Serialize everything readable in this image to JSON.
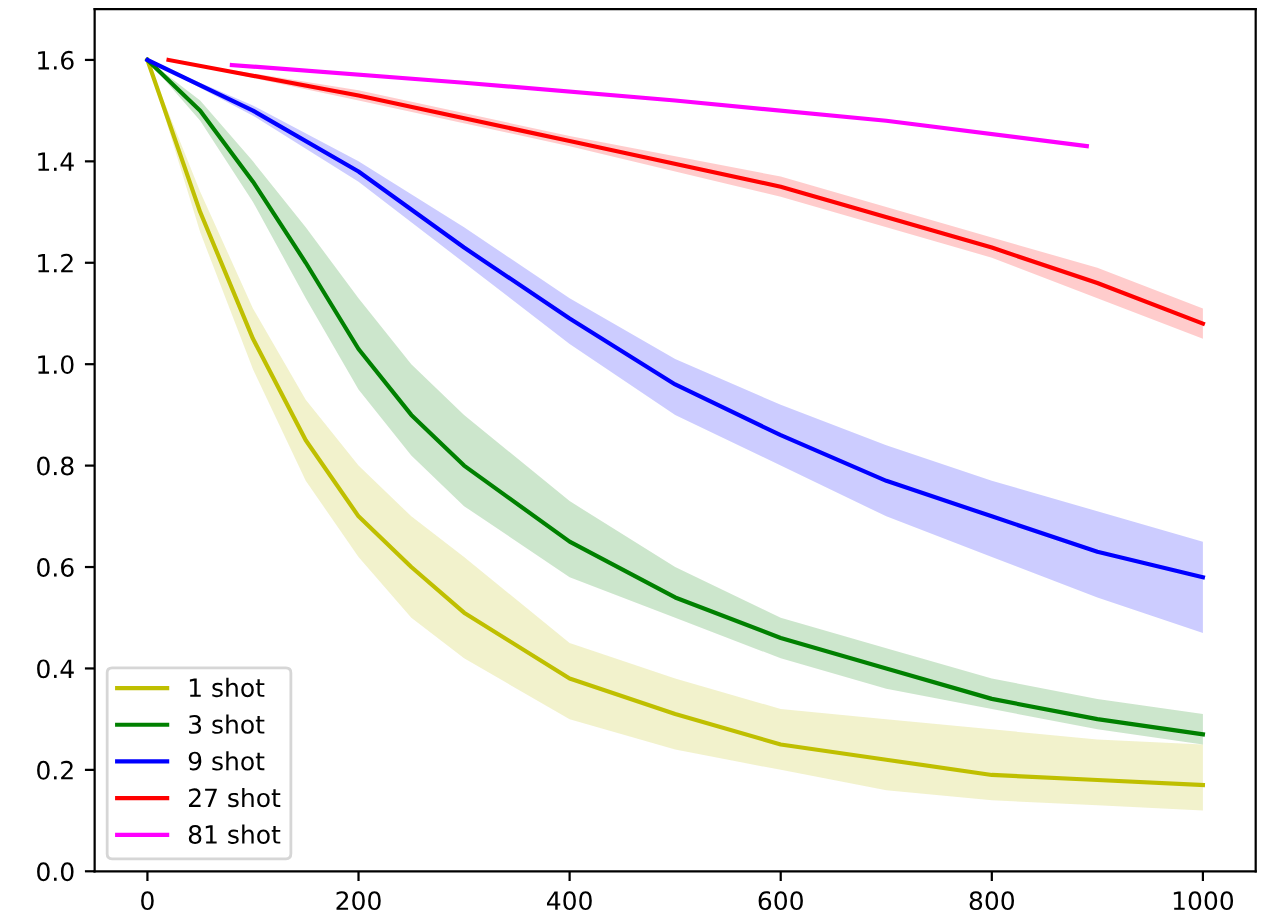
{
  "chart_data": {
    "type": "line",
    "xlim": [
      -50,
      1050
    ],
    "ylim": [
      0,
      1.7
    ],
    "xticks": [
      0,
      200,
      400,
      600,
      800,
      1000
    ],
    "yticks": [
      {
        "value": 0,
        "label": "0.0"
      },
      {
        "value": 0.2,
        "label": "0.2"
      },
      {
        "value": 0.4,
        "label": "0.4"
      },
      {
        "value": 0.6,
        "label": "0.6"
      },
      {
        "value": 0.8,
        "label": "0.8"
      },
      {
        "value": 1.0,
        "label": "1.0"
      },
      {
        "value": 1.2,
        "label": "1.2"
      },
      {
        "value": 1.4,
        "label": "1.4"
      },
      {
        "value": 1.6,
        "label": "1.6"
      }
    ],
    "grid": false,
    "legend": "bottom left",
    "series": [
      {
        "name": "1 shot",
        "color": "#bfbf00",
        "x": [
          0,
          50,
          100,
          150,
          200,
          250,
          300,
          400,
          500,
          600,
          700,
          800,
          900,
          1000
        ],
        "values": [
          1.6,
          1.3,
          1.05,
          0.85,
          0.7,
          0.6,
          0.51,
          0.38,
          0.31,
          0.25,
          0.22,
          0.19,
          0.18,
          0.17
        ],
        "lower": [
          1.6,
          1.26,
          0.99,
          0.77,
          0.62,
          0.5,
          0.42,
          0.3,
          0.24,
          0.2,
          0.16,
          0.14,
          0.13,
          0.12
        ],
        "upper": [
          1.6,
          1.34,
          1.11,
          0.93,
          0.8,
          0.7,
          0.62,
          0.45,
          0.38,
          0.32,
          0.3,
          0.28,
          0.26,
          0.25
        ]
      },
      {
        "name": "3 shot",
        "color": "#008000",
        "x": [
          0,
          50,
          100,
          150,
          200,
          250,
          300,
          400,
          500,
          600,
          700,
          800,
          900,
          1000
        ],
        "values": [
          1.6,
          1.5,
          1.36,
          1.2,
          1.03,
          0.9,
          0.8,
          0.65,
          0.54,
          0.46,
          0.4,
          0.34,
          0.3,
          0.27
        ],
        "lower": [
          1.6,
          1.48,
          1.32,
          1.13,
          0.95,
          0.82,
          0.72,
          0.58,
          0.5,
          0.42,
          0.36,
          0.32,
          0.28,
          0.25
        ],
        "upper": [
          1.6,
          1.52,
          1.4,
          1.27,
          1.13,
          1.0,
          0.9,
          0.73,
          0.6,
          0.5,
          0.44,
          0.38,
          0.34,
          0.31
        ]
      },
      {
        "name": "9 shot",
        "color": "#0000ff",
        "x": [
          0,
          100,
          200,
          300,
          400,
          500,
          600,
          700,
          800,
          900,
          1000
        ],
        "values": [
          1.6,
          1.5,
          1.38,
          1.23,
          1.09,
          0.96,
          0.86,
          0.77,
          0.7,
          0.63,
          0.58
        ],
        "lower": [
          1.6,
          1.49,
          1.36,
          1.2,
          1.04,
          0.9,
          0.8,
          0.7,
          0.62,
          0.54,
          0.47
        ],
        "upper": [
          1.6,
          1.51,
          1.4,
          1.27,
          1.13,
          1.01,
          0.92,
          0.84,
          0.77,
          0.71,
          0.65
        ]
      },
      {
        "name": "27 shot",
        "color": "#ff0000",
        "x": [
          20,
          200,
          400,
          600,
          800,
          900,
          1000
        ],
        "values": [
          1.6,
          1.53,
          1.44,
          1.35,
          1.23,
          1.16,
          1.08
        ],
        "lower": [
          1.6,
          1.52,
          1.43,
          1.33,
          1.21,
          1.13,
          1.05
        ],
        "upper": [
          1.6,
          1.54,
          1.45,
          1.37,
          1.25,
          1.19,
          1.11
        ]
      },
      {
        "name": "81 shot",
        "color": "#ff00ff",
        "x": [
          80,
          300,
          500,
          700,
          890
        ],
        "values": [
          1.59,
          1.555,
          1.52,
          1.48,
          1.43
        ]
      }
    ]
  }
}
